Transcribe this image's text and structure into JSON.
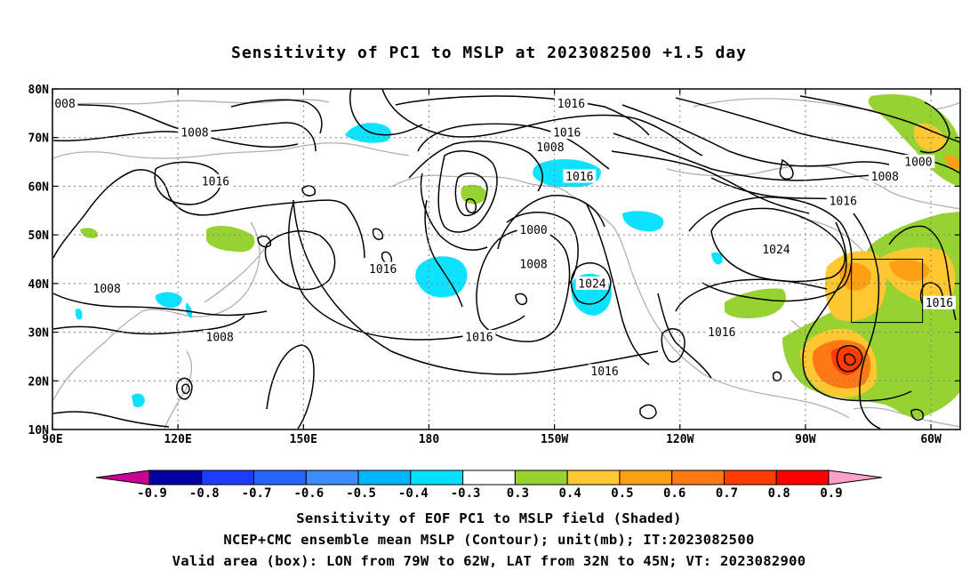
{
  "title": "Sensitivity of PC1 to MSLP at 2023082500 +1.5 day",
  "map": {
    "lat_ticks": [
      "80N",
      "70N",
      "60N",
      "50N",
      "40N",
      "30N",
      "20N",
      "10N"
    ],
    "lon_ticks": [
      "90E",
      "120E",
      "150E",
      "180",
      "150W",
      "120W",
      "90W",
      "60W"
    ],
    "extent": {
      "lon_min": 90,
      "lon_max": 307,
      "lat_min": 10,
      "lat_max": 80
    },
    "contour_labels": [
      {
        "text": "008",
        "lon": 93,
        "lat": 77
      },
      {
        "text": "1008",
        "lon": 124,
        "lat": 71
      },
      {
        "text": "1016",
        "lon": 129,
        "lat": 61
      },
      {
        "text": "1016",
        "lon": 169,
        "lat": 43
      },
      {
        "text": "1008",
        "lon": 103,
        "lat": 39
      },
      {
        "text": "1008",
        "lon": 130,
        "lat": 29
      },
      {
        "text": "1016",
        "lon": 192,
        "lat": 29
      },
      {
        "text": "1016",
        "lon": 214,
        "lat": 77
      },
      {
        "text": "1016",
        "lon": 213,
        "lat": 71
      },
      {
        "text": "1008",
        "lon": 209,
        "lat": 68
      },
      {
        "text": "1016",
        "lon": 216,
        "lat": 62
      },
      {
        "text": "1000",
        "lon": 205,
        "lat": 51
      },
      {
        "text": "1008",
        "lon": 205,
        "lat": 44
      },
      {
        "text": "1024",
        "lon": 219,
        "lat": 40
      },
      {
        "text": "1016",
        "lon": 222,
        "lat": 22
      },
      {
        "text": "1016",
        "lon": 250,
        "lat": 30
      },
      {
        "text": "1024",
        "lon": 263,
        "lat": 47
      },
      {
        "text": "1016",
        "lon": 279,
        "lat": 57
      },
      {
        "text": "1008",
        "lon": 289,
        "lat": 62
      },
      {
        "text": "1000",
        "lon": 297,
        "lat": 65
      },
      {
        "text": "1016",
        "lon": 302,
        "lat": 36
      }
    ],
    "box": {
      "lon_w": 281,
      "lon_e": 298,
      "lat_s": 32,
      "lat_n": 45
    }
  },
  "colorbar": {
    "labels": [
      "-0.9",
      "-0.8",
      "-0.7",
      "-0.6",
      "-0.5",
      "-0.4",
      "-0.3",
      "0.3",
      "0.4",
      "0.5",
      "0.6",
      "0.7",
      "0.8",
      "0.9"
    ],
    "colors": [
      "#0000a0",
      "#1e3cff",
      "#2864ff",
      "#3c8cff",
      "#00b4ff",
      "#00e1ff",
      "#ffffff",
      "#96d232",
      "#ffc832",
      "#ffa014",
      "#ff7814",
      "#ff3c00",
      "#ff0000"
    ],
    "low_end_color": "#c80096",
    "high_end_color": "#ffa0c8"
  },
  "captions": {
    "line1": "Sensitivity of EOF PC1 to MSLP field (Shaded)",
    "line2": "NCEP+CMC ensemble mean MSLP (Contour); unit(mb); IT:2023082500",
    "line3": "Valid area (box): LON from 79W to 62W, LAT from 32N to 45N; VT: 2023082900"
  }
}
